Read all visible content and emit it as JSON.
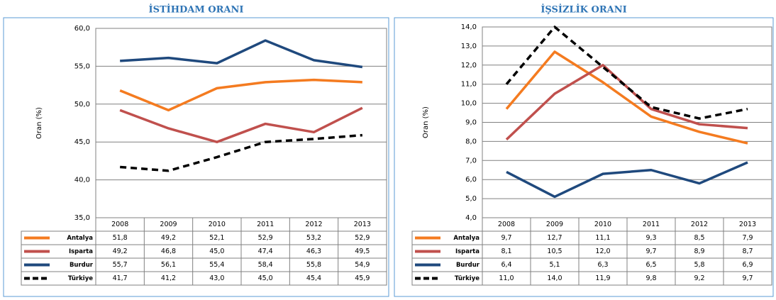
{
  "chart_data": [
    {
      "type": "line",
      "title": "İSTİHDAM ORANI",
      "ylabel": "Oran (%)",
      "categories": [
        "2008",
        "2009",
        "2010",
        "2011",
        "2012",
        "2013"
      ],
      "ylim": [
        35,
        60
      ],
      "yticks": [
        {
          "value": 35,
          "label": "35,0"
        },
        {
          "value": 40,
          "label": "40,0"
        },
        {
          "value": 45,
          "label": "45,0"
        },
        {
          "value": 50,
          "label": "50,0"
        },
        {
          "value": 55,
          "label": "55,0"
        },
        {
          "value": 60,
          "label": "60,0"
        }
      ],
      "grid": true,
      "series": [
        {
          "name": "Antalya",
          "color": "#f47b20",
          "dashed": false,
          "values": [
            51.8,
            49.2,
            52.1,
            52.9,
            53.2,
            52.9
          ],
          "value_labels": [
            "51,8",
            "49,2",
            "52,1",
            "52,9",
            "53,2",
            "52,9"
          ]
        },
        {
          "name": "Isparta",
          "color": "#c0504d",
          "dashed": false,
          "values": [
            49.2,
            46.8,
            45.0,
            47.4,
            46.3,
            49.5
          ],
          "value_labels": [
            "49,2",
            "46,8",
            "45,0",
            "47,4",
            "46,3",
            "49,5"
          ]
        },
        {
          "name": "Burdur",
          "color": "#1f497d",
          "dashed": false,
          "values": [
            55.7,
            56.1,
            55.4,
            58.4,
            55.8,
            54.9
          ],
          "value_labels": [
            "55,7",
            "56,1",
            "55,4",
            "58,4",
            "55,8",
            "54,9"
          ]
        },
        {
          "name": "Türkiye",
          "color": "#000000",
          "dashed": true,
          "values": [
            41.7,
            41.2,
            43.0,
            45.0,
            45.4,
            45.9
          ],
          "value_labels": [
            "41,7",
            "41,2",
            "43,0",
            "45,0",
            "45,4",
            "45,9"
          ]
        }
      ]
    },
    {
      "type": "line",
      "title": "İŞSİZLİK ORANI",
      "ylabel": "Oran (%)",
      "categories": [
        "2008",
        "2009",
        "2010",
        "2011",
        "2012",
        "2013"
      ],
      "ylim": [
        4,
        14
      ],
      "yticks": [
        {
          "value": 4,
          "label": "4,0"
        },
        {
          "value": 5,
          "label": "5,0"
        },
        {
          "value": 6,
          "label": "6,0"
        },
        {
          "value": 7,
          "label": "7,0"
        },
        {
          "value": 8,
          "label": "8,0"
        },
        {
          "value": 9,
          "label": "9,0"
        },
        {
          "value": 10,
          "label": "10,0"
        },
        {
          "value": 11,
          "label": "11,0"
        },
        {
          "value": 12,
          "label": "12,0"
        },
        {
          "value": 13,
          "label": "13,0"
        },
        {
          "value": 14,
          "label": "14,0"
        }
      ],
      "grid": true,
      "series": [
        {
          "name": "Antalya",
          "color": "#f47b20",
          "dashed": false,
          "values": [
            9.7,
            12.7,
            11.1,
            9.3,
            8.5,
            7.9
          ],
          "value_labels": [
            "9,7",
            "12,7",
            "11,1",
            "9,3",
            "8,5",
            "7,9"
          ]
        },
        {
          "name": "Isparta",
          "color": "#c0504d",
          "dashed": false,
          "values": [
            8.1,
            10.5,
            12.0,
            9.7,
            8.9,
            8.7
          ],
          "value_labels": [
            "8,1",
            "10,5",
            "12,0",
            "9,7",
            "8,9",
            "8,7"
          ]
        },
        {
          "name": "Burdur",
          "color": "#1f497d",
          "dashed": false,
          "values": [
            6.4,
            5.1,
            6.3,
            6.5,
            5.8,
            6.9
          ],
          "value_labels": [
            "6,4",
            "5,1",
            "6,3",
            "6,5",
            "5,8",
            "6,9"
          ]
        },
        {
          "name": "Türkiye",
          "color": "#000000",
          "dashed": true,
          "values": [
            11.0,
            14.0,
            11.9,
            9.8,
            9.2,
            9.7
          ],
          "value_labels": [
            "11,0",
            "14,0",
            "11,9",
            "9,8",
            "9,2",
            "9,7"
          ]
        }
      ]
    }
  ]
}
